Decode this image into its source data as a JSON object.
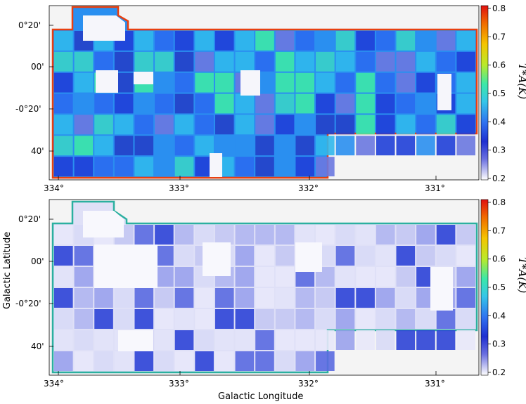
{
  "panels": [
    {
      "name": "top-panel",
      "y_tick_labels": [
        "0°20'",
        "00'",
        "-0°20'",
        "40'"
      ],
      "x_tick_labels": [
        "334°",
        "333°",
        "332°",
        "331°"
      ],
      "colorbar": {
        "ticks": [
          "0.8",
          "0.7",
          "0.6",
          "0.5",
          "0.4",
          "0.3",
          "0.2"
        ],
        "label": "T*A(K)"
      }
    },
    {
      "name": "bottom-panel",
      "y_tick_labels": [
        "0°20'",
        "00'",
        "-0°20'",
        "40'"
      ],
      "x_tick_labels": [
        "334°",
        "333°",
        "332°",
        "331°"
      ],
      "colorbar": {
        "ticks": [
          "0.8",
          "0.7",
          "0.6",
          "0.5",
          "0.4",
          "0.3",
          "0.2"
        ],
        "label": "T*A(K)"
      }
    }
  ],
  "xlabel": "Galactic Longitude",
  "ylabel": "Galactic Latitude",
  "colormap": [
    "#ffffff",
    "#1f2fd0",
    "#2fa6f0",
    "#3ce8a8",
    "#b9ea2a",
    "#f5b400",
    "#e01010"
  ],
  "colorbar_range": [
    0.2,
    0.8
  ]
}
